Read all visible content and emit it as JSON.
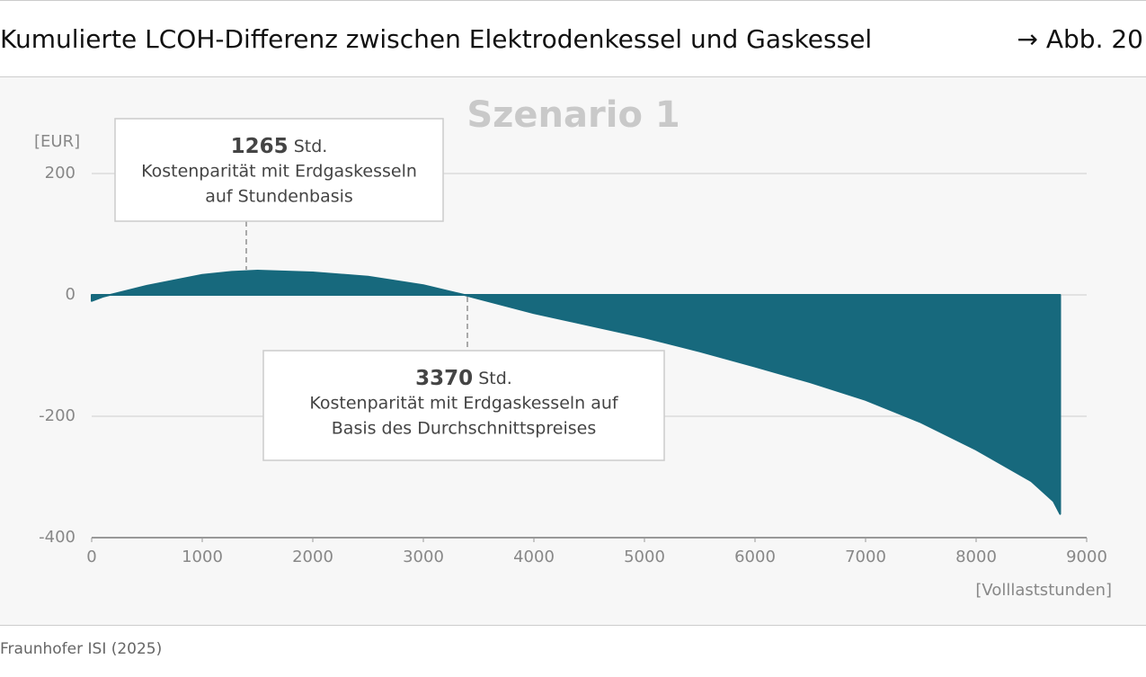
{
  "header": {
    "title": "Kumulierte LCOH-Differenz zwischen Elektrodenkessel und Gaskessel",
    "figure_ref": "→ Abb. 20"
  },
  "chart_data": {
    "type": "area",
    "title": "Szenario 1",
    "y_label": "[EUR]",
    "x_label": "[Volllaststunden]",
    "color": "#17697d",
    "x": [
      0,
      100,
      500,
      1000,
      1265,
      1500,
      2000,
      2500,
      3000,
      3370,
      4000,
      4500,
      5000,
      5500,
      6000,
      6500,
      7000,
      7500,
      8000,
      8500,
      8700,
      8760
    ],
    "values": [
      -10,
      -3,
      15,
      33,
      38,
      40,
      37,
      30,
      16,
      0,
      -30,
      -50,
      -70,
      -93,
      -118,
      -144,
      -173,
      -210,
      -255,
      -307,
      -340,
      -361
    ],
    "xlim": [
      0,
      9000
    ],
    "xticks": [
      0,
      1000,
      2000,
      3000,
      4000,
      5000,
      6000,
      7000,
      8000,
      9000
    ],
    "ylim": [
      -400,
      200
    ],
    "yticks": [
      -400,
      -200,
      0,
      200
    ],
    "grid": true,
    "annotations": [
      {
        "number": "1265",
        "unit": "Std.",
        "lines": [
          "Kostenparität mit Erdgaskesseln",
          "auf Stundenbasis"
        ]
      },
      {
        "number": "3370",
        "unit": "Std.",
        "lines": [
          "Kostenparität mit Erdgaskesseln auf",
          "Basis des Durchschnittspreises"
        ]
      }
    ]
  },
  "footer": {
    "source": "Fraunhofer ISI (2025)"
  }
}
